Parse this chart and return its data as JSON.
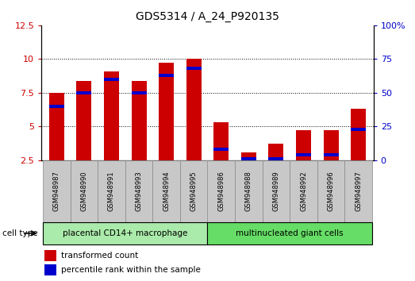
{
  "title": "GDS5314 / A_24_P920135",
  "samples": [
    "GSM948987",
    "GSM948990",
    "GSM948991",
    "GSM948993",
    "GSM948994",
    "GSM948995",
    "GSM948986",
    "GSM948988",
    "GSM948989",
    "GSM948992",
    "GSM948996",
    "GSM948997"
  ],
  "red_values": [
    7.5,
    8.4,
    9.1,
    8.4,
    9.7,
    10.0,
    5.3,
    3.1,
    3.7,
    4.7,
    4.7,
    6.3
  ],
  "blue_values": [
    6.5,
    7.5,
    8.5,
    7.5,
    8.8,
    9.3,
    3.3,
    2.6,
    2.6,
    2.9,
    2.9,
    4.8
  ],
  "group1_label": "placental CD14+ macrophage",
  "group2_label": "multinucleated giant cells",
  "group1_count": 6,
  "group2_count": 6,
  "cell_type_label": "cell type",
  "legend_red": "transformed count",
  "legend_blue": "percentile rank within the sample",
  "ylim_left": [
    2.5,
    12.5
  ],
  "ylim_right": [
    0,
    100
  ],
  "yticks_left": [
    2.5,
    5.0,
    7.5,
    10.0,
    12.5
  ],
  "yticks_right": [
    0,
    25,
    50,
    75,
    100
  ],
  "bar_color_red": "#cc0000",
  "bar_color_blue": "#0000cc",
  "group1_bg": "#aaeaaa",
  "group2_bg": "#66dd66",
  "tick_label_bg": "#c8c8c8",
  "bar_width": 0.55,
  "baseline": 2.5,
  "grid_lines": [
    5.0,
    7.5,
    10.0
  ]
}
